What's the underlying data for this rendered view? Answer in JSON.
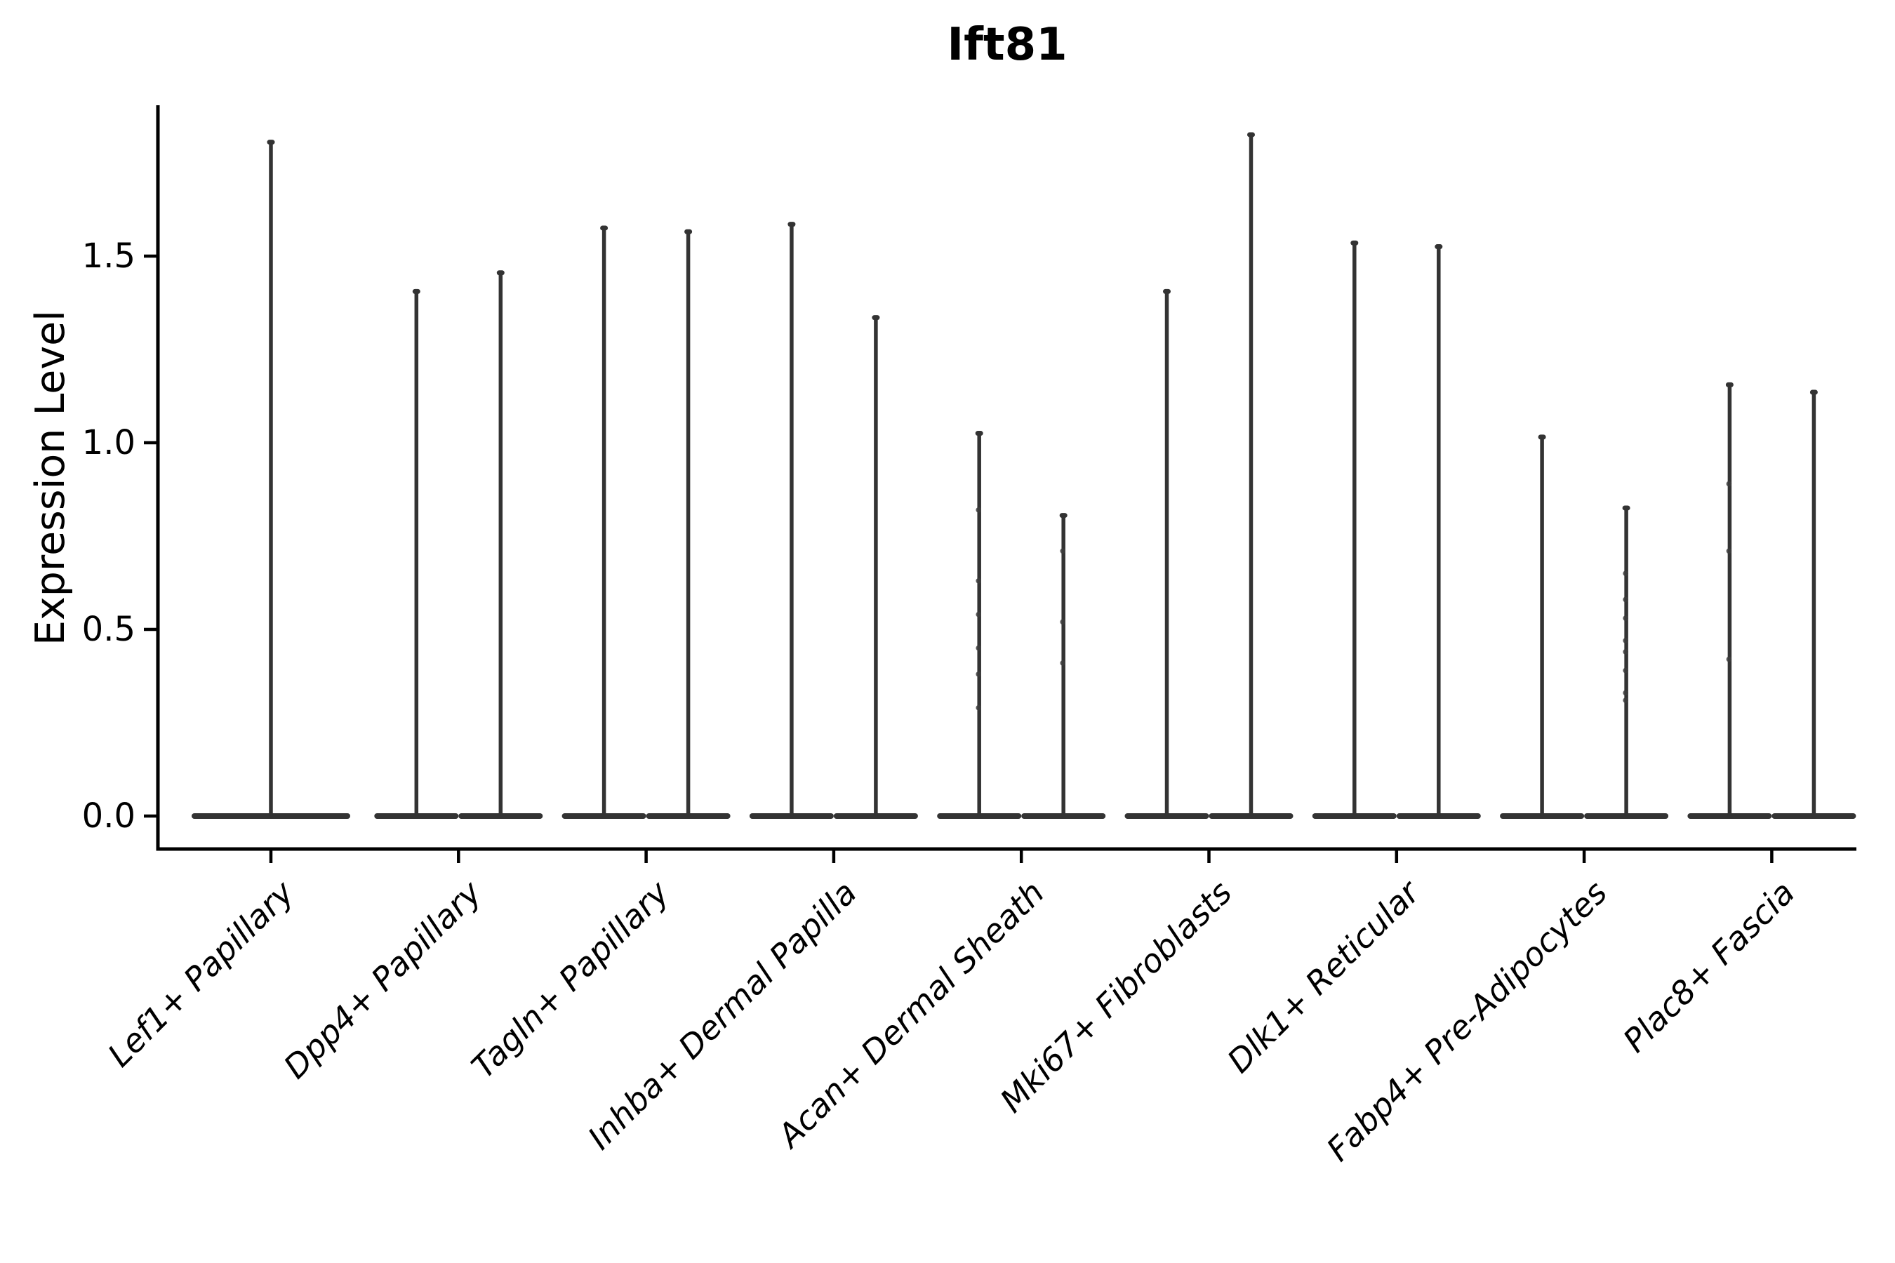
{
  "chart_data": {
    "type": "violin",
    "title": "Ift81",
    "ylabel": "Expression Level",
    "xlabel": "",
    "ylim": [
      0,
      1.9
    ],
    "yticks": [
      0.0,
      0.5,
      1.0,
      1.5
    ],
    "ytick_labels": [
      "0.0",
      "0.5",
      "1.0",
      "1.5"
    ],
    "grid": false,
    "legend": "none",
    "x_label_rotation_deg": 45,
    "categories": [
      "Lef1+ Papillary",
      "Dpp4+ Papillary",
      "Tagln+ Papillary",
      "Inhba+ Dermal Papilla",
      "Acan+ Dermal Sheath",
      "Mki67+ Fibroblasts",
      "Dlk1+ Reticular",
      "Fabp4+ Pre-Adipocytes",
      "Plac8+ Fascia"
    ],
    "violins": [
      {
        "category": "Lef1+ Papillary",
        "max_expression": [
          1.81
        ],
        "points": [
          []
        ]
      },
      {
        "category": "Dpp4+ Papillary",
        "max_expression": [
          1.41,
          1.46
        ],
        "points": [
          [],
          []
        ]
      },
      {
        "category": "Tagln+ Papillary",
        "max_expression": [
          1.58,
          1.57
        ],
        "points": [
          [],
          []
        ]
      },
      {
        "category": "Inhba+ Dermal Papilla",
        "max_expression": [
          1.59,
          1.34
        ],
        "points": [
          [],
          []
        ]
      },
      {
        "category": "Acan+ Dermal Sheath",
        "max_expression": [
          1.03,
          0.81
        ],
        "points": [
          [
            0.82,
            0.63,
            0.54,
            0.45,
            0.38,
            0.29
          ],
          [
            0.71,
            0.52,
            0.41
          ]
        ]
      },
      {
        "category": "Mki67+ Fibroblasts",
        "max_expression": [
          1.41,
          1.83
        ],
        "points": [
          [],
          []
        ]
      },
      {
        "category": "Dlk1+ Reticular",
        "max_expression": [
          1.54,
          1.53
        ],
        "points": [
          [],
          []
        ]
      },
      {
        "category": "Fabp4+ Pre-Adipocytes",
        "max_expression": [
          1.02,
          0.83
        ],
        "points": [
          [],
          [
            0.65,
            0.58,
            0.53,
            0.47,
            0.44,
            0.39,
            0.33,
            0.31
          ]
        ]
      },
      {
        "category": "Plac8+ Fascia",
        "max_expression": [
          1.16,
          1.14
        ],
        "points": [
          [
            0.89,
            0.71,
            0.42
          ],
          []
        ]
      }
    ]
  },
  "colors": {
    "violin": "#333333",
    "jitter_point": "#3d3d3d",
    "axis": "#000000",
    "text": "#000000",
    "background": "#ffffff"
  }
}
